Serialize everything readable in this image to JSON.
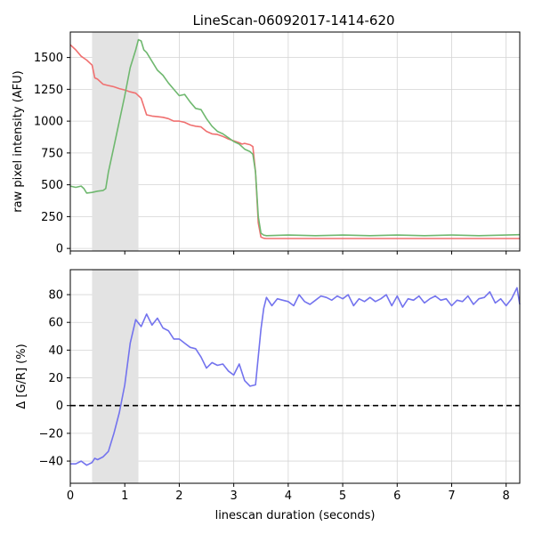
{
  "title": "LineScan-06092017-1414-620",
  "colors": {
    "red": "#f07070",
    "green": "#6fb86f",
    "blue": "#7373ee",
    "shade": "#e3e3e3",
    "grid": "#d4d4d4",
    "zero_line": "#000000"
  },
  "chart_data": [
    {
      "type": "line",
      "title": "LineScan-06092017-1414-620",
      "xlabel": "",
      "ylabel": "raw pixel intensity (AFU)",
      "xlim": [
        0,
        8.25
      ],
      "ylim": [
        -20,
        1700
      ],
      "xticks": [
        0,
        1,
        2,
        3,
        4,
        5,
        6,
        7,
        8
      ],
      "xtick_labels_visible": false,
      "yticks": [
        0,
        250,
        500,
        750,
        1000,
        1250,
        1500
      ],
      "ytick_labels": [
        "0",
        "250",
        "500",
        "750",
        "1000",
        "1250",
        "1500"
      ],
      "grid": true,
      "shaded_region": [
        0.4,
        1.25
      ],
      "series": [
        {
          "color": "red",
          "x": [
            0,
            0.1,
            0.2,
            0.3,
            0.4,
            0.45,
            0.5,
            0.6,
            0.7,
            0.8,
            0.9,
            1.0,
            1.1,
            1.2,
            1.3,
            1.4,
            1.5,
            1.6,
            1.7,
            1.8,
            1.9,
            2.0,
            2.1,
            2.2,
            2.3,
            2.4,
            2.5,
            2.6,
            2.7,
            2.8,
            2.9,
            3.0,
            3.1,
            3.15,
            3.2,
            3.25,
            3.3,
            3.35,
            3.4,
            3.45,
            3.5,
            3.55,
            3.6,
            3.8,
            4.5,
            5.5,
            6.5,
            7.5,
            8.25
          ],
          "values": [
            1600,
            1560,
            1510,
            1480,
            1440,
            1340,
            1330,
            1290,
            1280,
            1270,
            1255,
            1245,
            1230,
            1220,
            1180,
            1050,
            1040,
            1035,
            1030,
            1020,
            1000,
            1000,
            990,
            970,
            960,
            955,
            920,
            900,
            895,
            880,
            860,
            845,
            830,
            820,
            825,
            820,
            815,
            800,
            600,
            200,
            90,
            80,
            78,
            78,
            78,
            78,
            78,
            78,
            78
          ]
        },
        {
          "color": "green",
          "x": [
            0,
            0.1,
            0.2,
            0.25,
            0.3,
            0.4,
            0.5,
            0.6,
            0.65,
            0.7,
            0.8,
            0.9,
            1.0,
            1.1,
            1.2,
            1.25,
            1.3,
            1.35,
            1.4,
            1.5,
            1.6,
            1.7,
            1.8,
            1.9,
            2.0,
            2.1,
            2.2,
            2.3,
            2.4,
            2.5,
            2.6,
            2.7,
            2.8,
            2.9,
            3.0,
            3.1,
            3.2,
            3.3,
            3.35,
            3.4,
            3.45,
            3.5,
            3.55,
            3.6,
            4.0,
            4.5,
            5.0,
            5.5,
            6.0,
            6.5,
            7.0,
            7.5,
            8.0,
            8.25
          ],
          "values": [
            490,
            480,
            490,
            470,
            435,
            440,
            450,
            455,
            470,
            600,
            800,
            1000,
            1200,
            1420,
            1560,
            1640,
            1630,
            1560,
            1540,
            1470,
            1400,
            1360,
            1300,
            1250,
            1200,
            1210,
            1150,
            1100,
            1090,
            1020,
            960,
            920,
            900,
            870,
            840,
            820,
            780,
            760,
            740,
            600,
            250,
            120,
            105,
            100,
            105,
            100,
            105,
            100,
            105,
            100,
            105,
            100,
            105,
            108
          ]
        }
      ]
    },
    {
      "type": "line",
      "xlabel": "linescan duration (seconds)",
      "ylabel": "Δ [G/R] (%)",
      "xlim": [
        0,
        8.25
      ],
      "ylim": [
        -56,
        98
      ],
      "xticks": [
        0,
        1,
        2,
        3,
        4,
        5,
        6,
        7,
        8
      ],
      "xtick_labels": [
        "0",
        "1",
        "2",
        "3",
        "4",
        "5",
        "6",
        "7",
        "8"
      ],
      "yticks": [
        -40,
        -20,
        0,
        20,
        40,
        60,
        80
      ],
      "ytick_labels": [
        "−40",
        "−20",
        "0",
        "20",
        "40",
        "60",
        "80"
      ],
      "grid": true,
      "shaded_region": [
        0.4,
        1.25
      ],
      "reference_line": {
        "y": 0,
        "style": "dashed"
      },
      "series": [
        {
          "color": "blue",
          "x": [
            0,
            0.1,
            0.2,
            0.3,
            0.4,
            0.45,
            0.5,
            0.6,
            0.7,
            0.8,
            0.9,
            1.0,
            1.1,
            1.2,
            1.3,
            1.4,
            1.5,
            1.6,
            1.7,
            1.8,
            1.9,
            2.0,
            2.1,
            2.2,
            2.3,
            2.4,
            2.5,
            2.6,
            2.7,
            2.8,
            2.9,
            3.0,
            3.1,
            3.2,
            3.3,
            3.4,
            3.5,
            3.55,
            3.6,
            3.7,
            3.8,
            3.9,
            4.0,
            4.1,
            4.2,
            4.3,
            4.4,
            4.5,
            4.6,
            4.7,
            4.8,
            4.9,
            5.0,
            5.1,
            5.2,
            5.3,
            5.4,
            5.5,
            5.6,
            5.7,
            5.8,
            5.9,
            6.0,
            6.1,
            6.2,
            6.3,
            6.4,
            6.5,
            6.6,
            6.7,
            6.8,
            6.9,
            7.0,
            7.1,
            7.2,
            7.3,
            7.4,
            7.5,
            7.6,
            7.7,
            7.8,
            7.9,
            8.0,
            8.1,
            8.2,
            8.25
          ],
          "values": [
            -42,
            -42,
            -40,
            -43,
            -41,
            -38,
            -39,
            -37,
            -33,
            -20,
            -5,
            15,
            45,
            62,
            57,
            66,
            58,
            63,
            56,
            54,
            48,
            48,
            45,
            42,
            41,
            35,
            27,
            31,
            29,
            30,
            25,
            22,
            30,
            18,
            14,
            15,
            55,
            70,
            78,
            72,
            77,
            76,
            75,
            72,
            80,
            75,
            73,
            76,
            79,
            78,
            76,
            79,
            77,
            80,
            72,
            77,
            75,
            78,
            75,
            77,
            80,
            72,
            79,
            71,
            77,
            76,
            79,
            74,
            77,
            79,
            76,
            77,
            72,
            76,
            75,
            79,
            73,
            77,
            78,
            82,
            74,
            77,
            72,
            77,
            85,
            73
          ]
        }
      ]
    }
  ]
}
